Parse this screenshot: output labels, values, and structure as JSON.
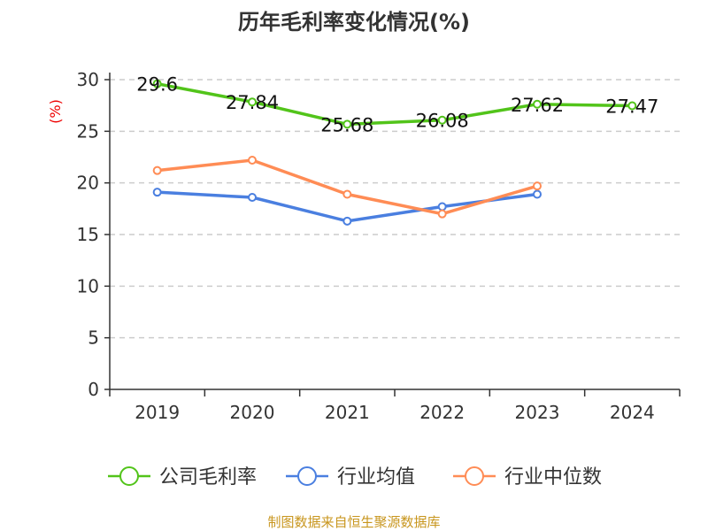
{
  "chart_data": {
    "type": "line",
    "title": "历年毛利率变化情况(%)",
    "ylabel": "(%)",
    "xlabel": "",
    "categories": [
      "2019",
      "2020",
      "2021",
      "2022",
      "2023",
      "2024"
    ],
    "ylim": [
      0,
      30
    ],
    "yticks": [
      0,
      5,
      10,
      15,
      20,
      25,
      30
    ],
    "grid": true,
    "legend_placement": "bottom",
    "series": [
      {
        "name": "公司毛利率",
        "color": "#52c41a",
        "values": [
          29.6,
          27.84,
          25.68,
          26.08,
          27.62,
          27.47
        ],
        "labels": [
          "29.6",
          "27.84",
          "25.68",
          "26.08",
          "27.62",
          "27.47"
        ]
      },
      {
        "name": "行业均值",
        "color": "#4a7fe0",
        "values": [
          19.1,
          18.6,
          16.3,
          17.7,
          18.9,
          null
        ]
      },
      {
        "name": "行业中位数",
        "color": "#ff8c55",
        "values": [
          21.2,
          22.2,
          18.9,
          17.0,
          19.7,
          null
        ]
      }
    ]
  },
  "footer": {
    "source": "制图数据来自恒生聚源数据库"
  }
}
